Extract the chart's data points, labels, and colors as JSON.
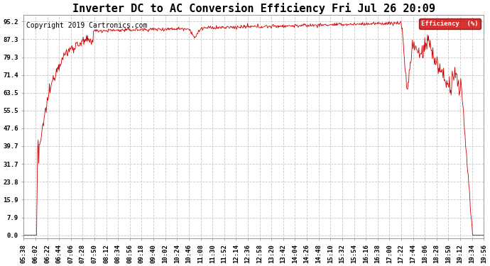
{
  "title": "Inverter DC to AC Conversion Efficiency Fri Jul 26 20:09",
  "copyright": "Copyright 2019 Cartronics.com",
  "legend_label": "Efficiency  (%)",
  "legend_bg": "#cc0000",
  "legend_text_color": "#ffffff",
  "line_color": "#cc0000",
  "background_color": "#ffffff",
  "grid_color": "#c8c8c8",
  "yticks": [
    0.0,
    7.9,
    15.9,
    23.8,
    31.7,
    39.7,
    47.6,
    55.5,
    63.5,
    71.4,
    79.3,
    87.3,
    95.2
  ],
  "xtick_labels": [
    "05:38",
    "06:02",
    "06:22",
    "06:44",
    "07:06",
    "07:28",
    "07:50",
    "08:12",
    "08:34",
    "08:56",
    "09:18",
    "09:40",
    "10:02",
    "10:24",
    "10:46",
    "11:08",
    "11:30",
    "11:52",
    "12:14",
    "12:36",
    "12:58",
    "13:20",
    "13:42",
    "14:04",
    "14:26",
    "14:48",
    "15:10",
    "15:32",
    "15:54",
    "16:16",
    "16:38",
    "17:00",
    "17:22",
    "17:44",
    "18:06",
    "18:28",
    "18:50",
    "19:12",
    "19:34",
    "19:56"
  ],
  "title_fontsize": 11,
  "axis_fontsize": 6.5,
  "copyright_fontsize": 7
}
